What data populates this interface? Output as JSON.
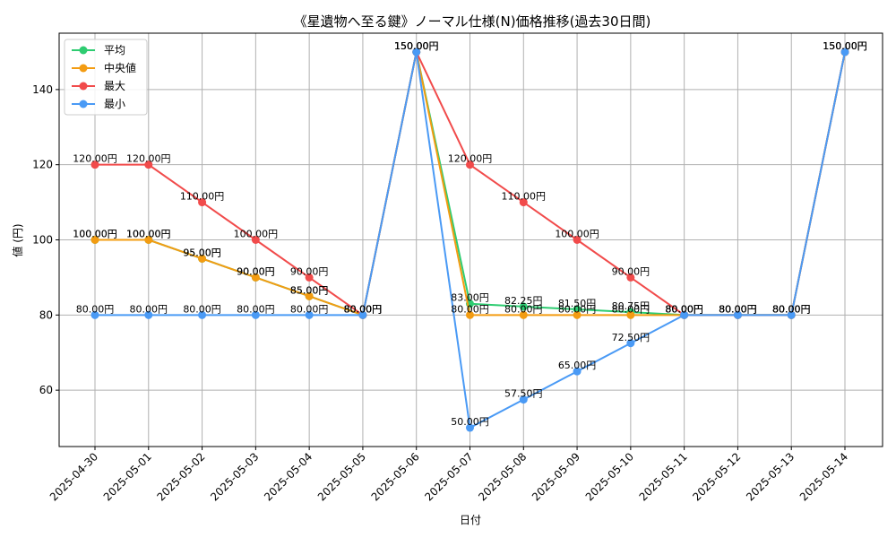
{
  "chart_data": {
    "type": "line",
    "title": "《星遺物へ至る鍵》ノーマル仕様(N)価格推移(過去30日間)",
    "xlabel": "日付",
    "ylabel": "値 (円)",
    "ylim": [
      45,
      155
    ],
    "yticks": [
      60,
      80,
      100,
      120,
      140
    ],
    "grid": true,
    "legend_position": "top-left",
    "categories": [
      "2025-04-30",
      "2025-05-01",
      "2025-05-02",
      "2025-05-03",
      "2025-05-04",
      "2025-05-05",
      "2025-05-06",
      "2025-05-07",
      "2025-05-08",
      "2025-05-09",
      "2025-05-10",
      "2025-05-11",
      "2025-05-12",
      "2025-05-13",
      "2025-05-14"
    ],
    "series": [
      {
        "name": "平均",
        "color": "#2ecc71",
        "values": [
          100,
          100,
          95,
          90,
          85,
          80,
          150,
          83,
          82.25,
          81.5,
          80.75,
          80,
          80,
          80,
          150
        ],
        "labels": [
          "100.00円",
          "100.00円",
          "95.00円",
          "90.00円",
          "85.00円",
          "80.00円",
          "150.00円",
          "83.00円",
          "82.25円",
          "81.50円",
          "80.75円",
          "80.00円",
          "80.00円",
          "80.00円",
          "150.00円"
        ]
      },
      {
        "name": "中央値",
        "color": "#f39c12",
        "values": [
          100,
          100,
          95,
          90,
          85,
          80,
          150,
          80,
          80,
          80,
          80,
          80,
          80,
          80,
          150
        ],
        "labels": [
          "100.00円",
          "100.00円",
          "95.00円",
          "90.00円",
          "85.00円",
          "80.00円",
          "150.00円",
          "80.00円",
          "80.00円",
          "80.00円",
          "80.00円",
          "80.00円",
          "80.00円",
          "80.00円",
          "150.00円"
        ]
      },
      {
        "name": "最大",
        "color": "#f14b4b",
        "values": [
          120,
          120,
          110,
          100,
          90,
          80,
          150,
          120,
          110,
          100,
          90,
          80,
          80,
          80,
          150
        ],
        "labels": [
          "120.00円",
          "120.00円",
          "110.00円",
          "100.00円",
          "90.00円",
          "80.00円",
          "150.00円",
          "120.00円",
          "110.00円",
          "100.00円",
          "90.00円",
          "80.00円",
          "80.00円",
          "80.00円",
          "150.00円"
        ]
      },
      {
        "name": "最小",
        "color": "#4a9af5",
        "values": [
          80,
          80,
          80,
          80,
          80,
          80,
          150,
          50,
          57.5,
          65,
          72.5,
          80,
          80,
          80,
          150
        ],
        "labels": [
          "80.00円",
          "80.00円",
          "80.00円",
          "80.00円",
          "80.00円",
          "80.00円",
          "150.00円",
          "50.00円",
          "57.50円",
          "65.00円",
          "72.50円",
          "80.00円",
          "80.00円",
          "80.00円",
          "150.00円"
        ]
      }
    ]
  }
}
